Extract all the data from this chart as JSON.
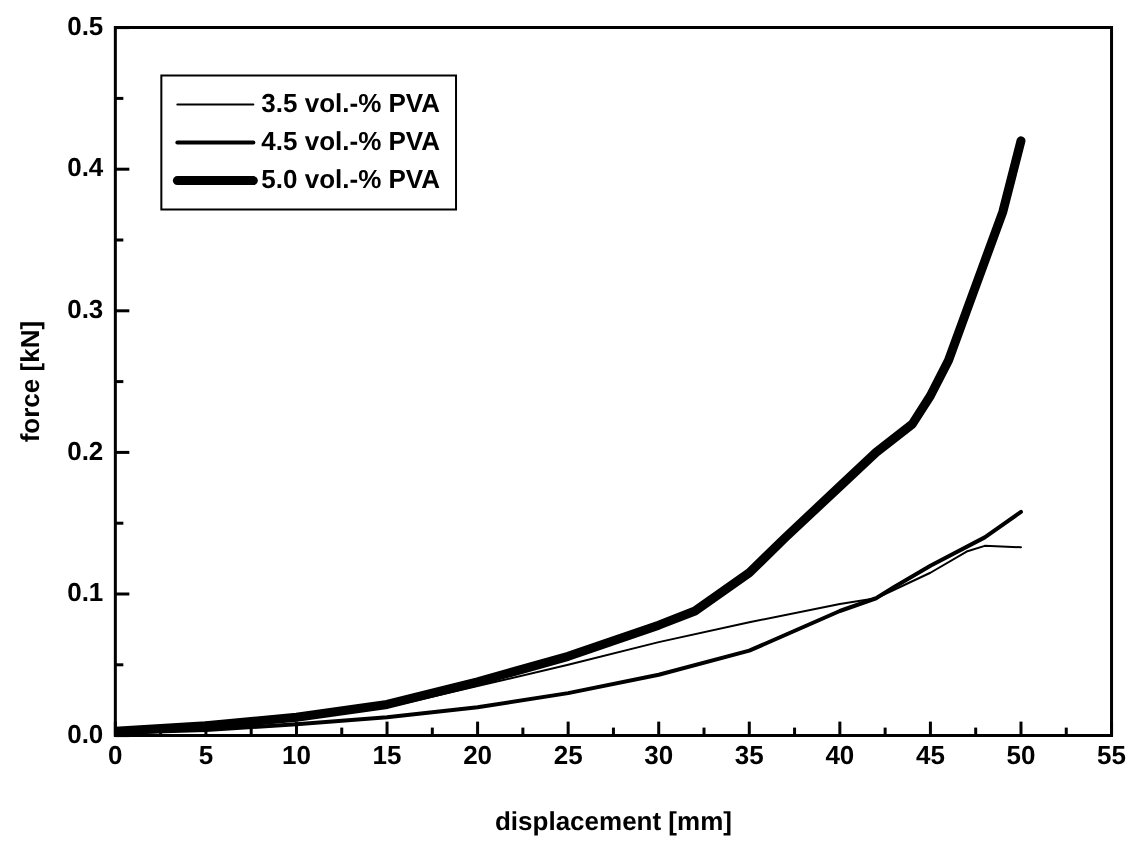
{
  "chart_data": {
    "type": "line",
    "xlabel": "displacement [mm]",
    "ylabel": "force [kN]",
    "xlim": [
      0,
      55
    ],
    "ylim": [
      0,
      0.5
    ],
    "xticks": [
      0,
      5,
      10,
      15,
      20,
      25,
      30,
      35,
      40,
      45,
      50,
      55
    ],
    "yticks": [
      {
        "value": 0,
        "label": "0.0"
      },
      {
        "value": 0.1,
        "label": "0.1"
      },
      {
        "value": 0.2,
        "label": "0.2"
      },
      {
        "value": 0.3,
        "label": "0.3"
      },
      {
        "value": 0.4,
        "label": "0.4"
      },
      {
        "value": 0.5,
        "label": "0.5"
      }
    ],
    "grid": false,
    "legend": "top left",
    "marker": "none",
    "line_style": "solid",
    "series": [
      {
        "name": "3.5 vol.-% PVA",
        "color": "#000000",
        "x": [
          0,
          5,
          10,
          15,
          20,
          25,
          30,
          35,
          40,
          42,
          45,
          47,
          48,
          50
        ],
        "values": [
          0.003,
          0.006,
          0.012,
          0.02,
          0.035,
          0.05,
          0.066,
          0.08,
          0.093,
          0.097,
          0.115,
          0.13,
          0.134,
          0.133
        ]
      },
      {
        "name": "4.5 vol.-% PVA",
        "color": "#000000",
        "x": [
          0,
          5,
          10,
          15,
          20,
          25,
          30,
          35,
          40,
          42,
          43,
          45,
          48,
          50
        ],
        "values": [
          0.002,
          0.004,
          0.008,
          0.013,
          0.02,
          0.03,
          0.043,
          0.06,
          0.088,
          0.097,
          0.105,
          0.12,
          0.14,
          0.158
        ]
      },
      {
        "name": "5.0 vol.-% PVA",
        "color": "#000000",
        "x": [
          0,
          5,
          10,
          15,
          20,
          25,
          30,
          32,
          35,
          37,
          40,
          42,
          44,
          45,
          46,
          47,
          48,
          49,
          50
        ],
        "values": [
          0.003,
          0.007,
          0.013,
          0.022,
          0.038,
          0.056,
          0.078,
          0.088,
          0.115,
          0.14,
          0.176,
          0.2,
          0.22,
          0.24,
          0.265,
          0.3,
          0.335,
          0.37,
          0.42
        ]
      }
    ]
  }
}
